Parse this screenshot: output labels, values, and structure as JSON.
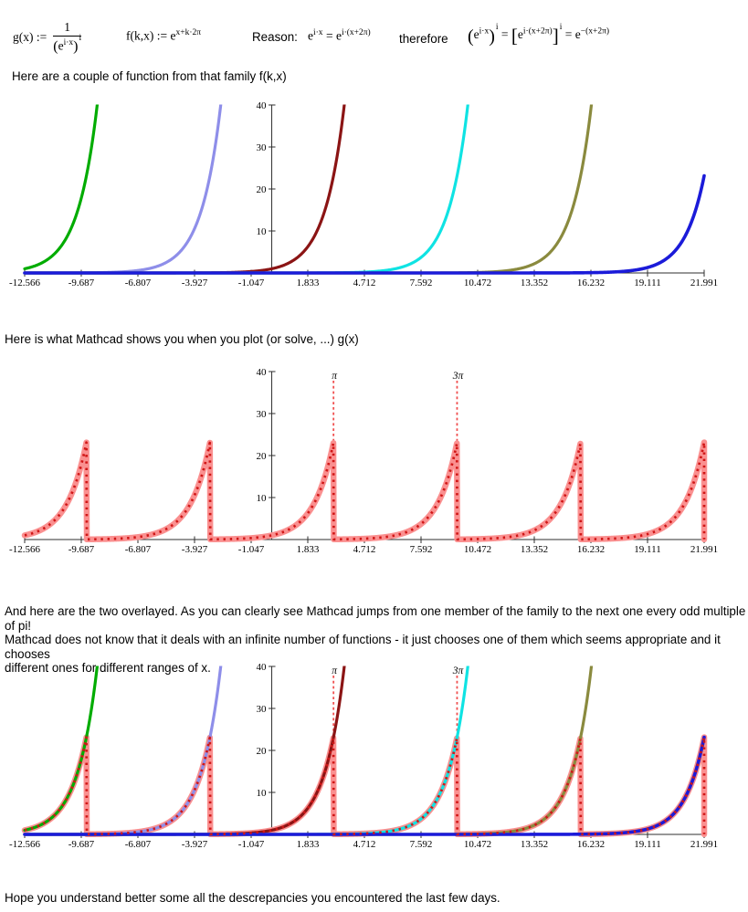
{
  "texts": {
    "intro1": "Here are a couple of function from that family f(k,x)",
    "intro2": "Here is what Mathcad shows you when you plot (or solve, ...) g(x)",
    "paragraph_lines": [
      "And here are the two overlayed. As you can clearly see Mathcad jumps from one member of the family to the next one every odd multiple of pi!",
      "Mathcad does not know that it deals with an infinite number of functions - it just chooses one of them which seems appropriate and it chooses",
      "different ones for different ranges of x."
    ],
    "closing": "Hope you understand better some all the descrepancies you encountered the last few days."
  },
  "formulas": {
    "g": {
      "lhs": "g(x) :=",
      "numerator": "1",
      "base": "e",
      "inner_exp": "i·x",
      "outer_exp": "i"
    },
    "f": {
      "lhs": "f(k,x) :=",
      "base": "e",
      "exp": "x+k·2π"
    },
    "reason": {
      "label": "Reason:",
      "lhs_base": "e",
      "lhs_exp": "i·x",
      "equals": "=",
      "rhs_base": "e",
      "rhs_exp": "i·(x+2π)"
    },
    "therefore": {
      "label": "therefore"
    },
    "identity": {
      "t1_base": "e",
      "t1_inner_exp": "i·x",
      "t1_outer_exp": "i",
      "eq1": "=",
      "t2_base": "e",
      "t2_inner_exp": "i·(x+2π)",
      "t2_outer_exp": "i",
      "eq2": "=",
      "t3_base": "e",
      "t3_exp": "−(x+2π)"
    }
  },
  "chart_data": [
    {
      "id": "family-plot",
      "type": "line",
      "title": "",
      "xlabel": "",
      "ylabel": "",
      "xlim": [
        -12.566,
        21.991
      ],
      "ylim": [
        0,
        40
      ],
      "grid": false,
      "legend": "none",
      "axis_color": "#2f2f2f",
      "x_ticks": [
        -12.566,
        -9.687,
        -6.807,
        -3.927,
        -1.047,
        1.833,
        4.712,
        7.592,
        10.472,
        13.352,
        16.232,
        19.111,
        21.991
      ],
      "x_tick_labels": [
        "-12.566",
        "-9.687",
        "-6.807",
        "-3.927",
        "-1.047",
        "1.833",
        "4.712",
        "7.592",
        "10.472",
        "13.352",
        "16.232",
        "19.111",
        "21.991"
      ],
      "y_ticks": [
        10,
        20,
        30,
        40
      ],
      "function_family": "f(k,x) = e^(x + k·2π)",
      "series": [
        {
          "name": "f(2,x) = e^(x+4π)",
          "k": 2,
          "color": "#00ac00",
          "width": 3.2
        },
        {
          "name": "f(1,x) = e^(x+2π)",
          "k": 1,
          "color": "#8e8ee9",
          "width": 3.2
        },
        {
          "name": "f(0,x) = e^x",
          "k": 0,
          "color": "#8b1414",
          "width": 3.2
        },
        {
          "name": "f(-1,x) = e^(x-2π)",
          "k": -1,
          "color": "#0fe3e3",
          "width": 3.2
        },
        {
          "name": "f(-2,x) = e^(x-4π)",
          "k": -2,
          "color": "#8a8a3e",
          "width": 3.2
        },
        {
          "name": "f(-3,x) = e^(x-6π)",
          "k": -3,
          "color": "#1b1bd9",
          "width": 3.6
        }
      ]
    },
    {
      "id": "g-plot",
      "type": "line",
      "title": "",
      "xlabel": "",
      "ylabel": "",
      "xlim": [
        -12.566,
        21.991
      ],
      "ylim": [
        0,
        40
      ],
      "grid": false,
      "legend": "none",
      "axis_color": "#2f2f2f",
      "marker_color": "#f05050",
      "x_ticks": [
        -12.566,
        -9.687,
        -6.807,
        -3.927,
        -1.047,
        1.833,
        4.712,
        7.592,
        10.472,
        13.352,
        16.232,
        19.111,
        21.991
      ],
      "x_tick_labels": [
        "-12.566",
        "-9.687",
        "-6.807",
        "-3.927",
        "-1.047",
        "1.833",
        "4.712",
        "7.592",
        "10.472",
        "13.352",
        "16.232",
        "19.111",
        "21.991"
      ],
      "y_ticks": [
        10,
        20,
        30,
        40
      ],
      "markers": [
        {
          "x": 3.14159,
          "label": "π"
        },
        {
          "x": 9.42478,
          "label": "3π"
        }
      ],
      "g_series": {
        "name": "g(x)",
        "description": "g(x) = e^(x−2kπ) with x−2kπ ∈ [−π, π); sawtooth, period 2π",
        "period": 6.28319,
        "peak_value": 23.141,
        "trough_value": 0.043,
        "band_color": "#fa9090",
        "band_width": 6.5,
        "dot_color": "#d01616",
        "dot_width": 2.7
      }
    },
    {
      "id": "overlay-plot",
      "type": "line",
      "title": "",
      "xlabel": "",
      "ylabel": "",
      "xlim": [
        -12.566,
        21.991
      ],
      "ylim": [
        0,
        40
      ],
      "grid": false,
      "legend": "none",
      "axis_color": "#2f2f2f",
      "marker_color": "#f05050",
      "x_ticks": [
        -12.566,
        -9.687,
        -6.807,
        -3.927,
        -1.047,
        1.833,
        4.712,
        7.592,
        10.472,
        13.352,
        16.232,
        19.111,
        21.991
      ],
      "x_tick_labels": [
        "-12.566",
        "-9.687",
        "-6.807",
        "-3.927",
        "-1.047",
        "1.833",
        "4.712",
        "7.592",
        "10.472",
        "13.352",
        "16.232",
        "19.111",
        "21.991"
      ],
      "y_ticks": [
        10,
        20,
        30,
        40
      ],
      "markers": [
        {
          "x": 3.14159,
          "label": "π"
        },
        {
          "x": 9.42478,
          "label": "3π"
        }
      ],
      "series": [
        {
          "name": "f(2,x) = e^(x+4π)",
          "k": 2,
          "color": "#00ac00",
          "width": 3.2
        },
        {
          "name": "f(1,x) = e^(x+2π)",
          "k": 1,
          "color": "#8e8ee9",
          "width": 3.2
        },
        {
          "name": "f(0,x) = e^x",
          "k": 0,
          "color": "#8b1414",
          "width": 3.2
        },
        {
          "name": "f(-1,x) = e^(x-2π)",
          "k": -1,
          "color": "#0fe3e3",
          "width": 3.2
        },
        {
          "name": "f(-2,x) = e^(x-4π)",
          "k": -2,
          "color": "#8a8a3e",
          "width": 3.2
        },
        {
          "name": "f(-3,x) = e^(x-6π)",
          "k": -3,
          "color": "#1b1bd9",
          "width": 3.6
        }
      ],
      "g_series": {
        "name": "g(x)",
        "description": "g(x) = e^(x−2kπ) with x−2kπ ∈ [−π, π); sawtooth, period 2π",
        "period": 6.28319,
        "peak_value": 23.141,
        "trough_value": 0.043,
        "band_color": "#fa9090",
        "band_width": 6.5,
        "dot_color": "#d01616",
        "dot_width": 2.7
      }
    }
  ]
}
